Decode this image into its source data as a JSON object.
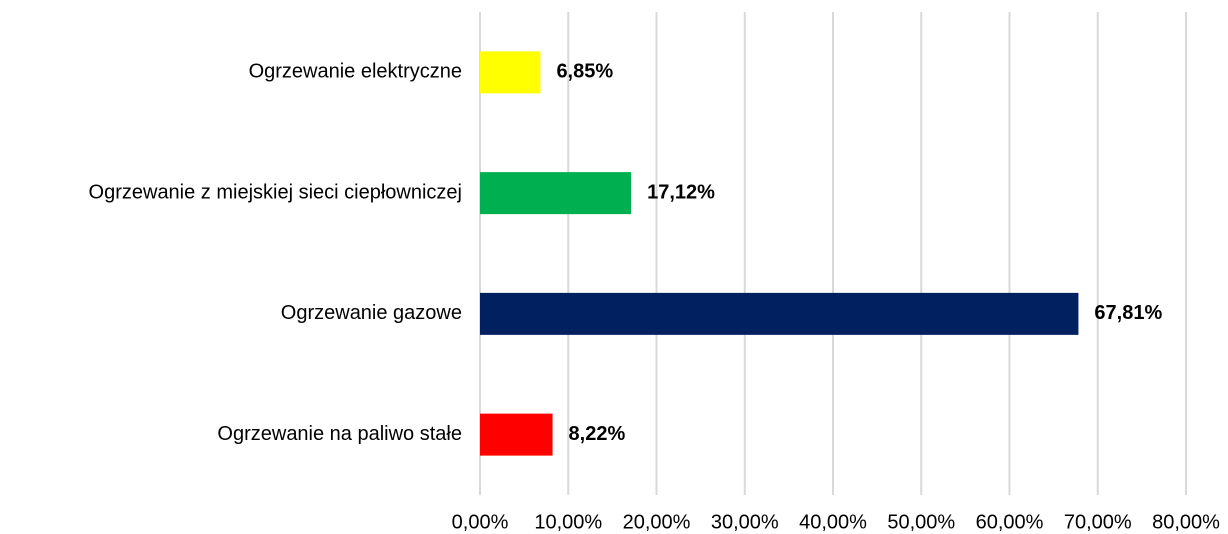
{
  "chart_data": {
    "type": "hbar",
    "categories": [
      "Ogrzewanie elektryczne",
      "Ogrzewanie z miejskiej sieci ciepłowniczej",
      "Ogrzewanie gazowe",
      "Ogrzewanie na paliwo stałe"
    ],
    "values": [
      6.85,
      17.12,
      67.81,
      8.22
    ],
    "value_labels": [
      "6,85%",
      "17,12%",
      "67,81%",
      "8,22%"
    ],
    "colors": [
      "#ffff00",
      "#00b050",
      "#002060",
      "#ff0000"
    ],
    "xlim": [
      0,
      80
    ],
    "xticks": [
      {
        "value": 0,
        "label": "0,00%"
      },
      {
        "value": 10,
        "label": "10,00%"
      },
      {
        "value": 20,
        "label": "20,00%"
      },
      {
        "value": 30,
        "label": "30,00%"
      },
      {
        "value": 40,
        "label": "40,00%"
      },
      {
        "value": 50,
        "label": "50,00%"
      },
      {
        "value": 60,
        "label": "60,00%"
      },
      {
        "value": 70,
        "label": "70,00%"
      },
      {
        "value": 80,
        "label": "80,00%"
      }
    ],
    "grid": true
  }
}
